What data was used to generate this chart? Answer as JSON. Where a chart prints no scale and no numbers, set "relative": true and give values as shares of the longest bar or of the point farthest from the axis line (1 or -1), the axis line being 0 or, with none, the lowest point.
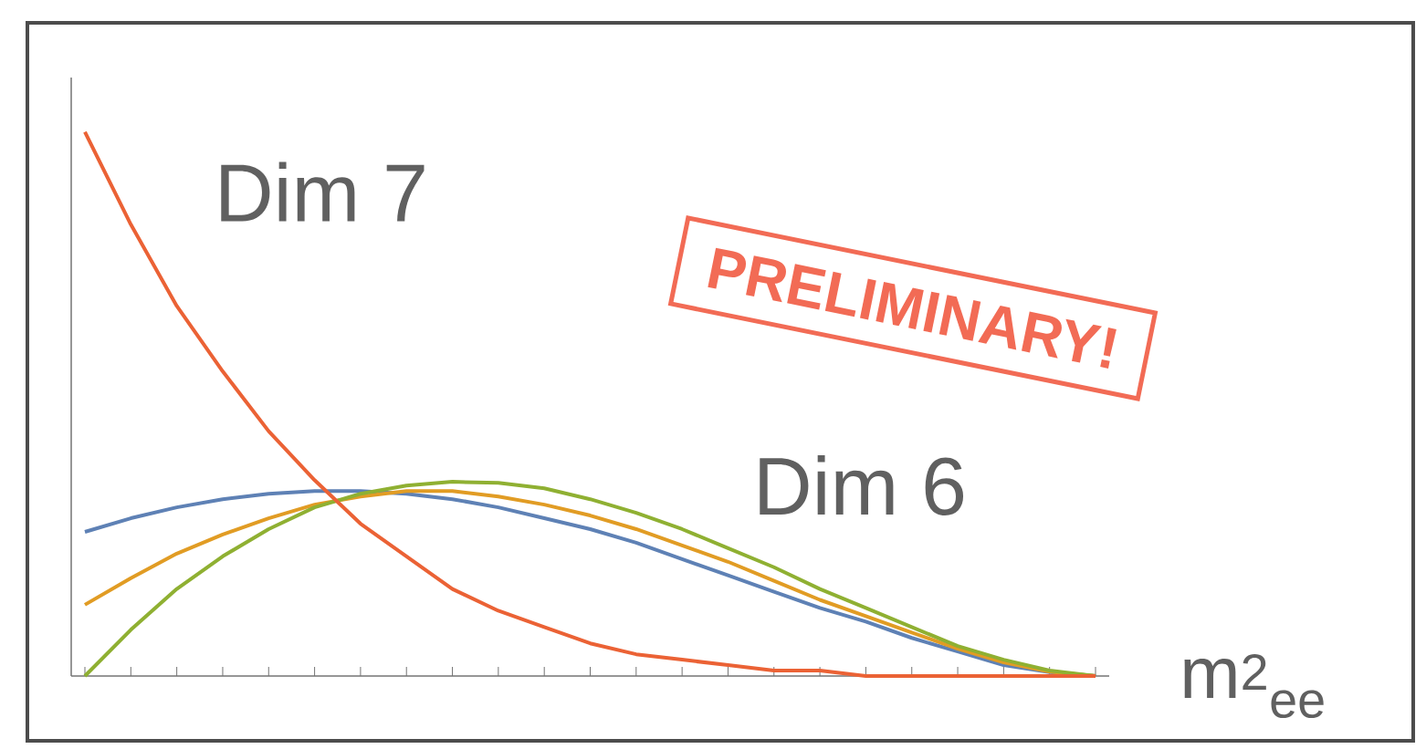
{
  "chart_data": {
    "type": "line",
    "relative": true,
    "xlabel": "m$^{2}$$_{ee}$",
    "annotations": [
      "Dim 7",
      "Dim 6",
      "PRELIMINARY!"
    ],
    "categories": [
      null,
      null,
      null,
      null,
      null,
      null,
      null,
      null,
      null,
      null,
      null,
      null,
      null,
      null,
      null,
      null,
      null,
      null,
      null,
      null,
      null,
      null,
      null
    ],
    "series": [
      {
        "color": "#5e81b5",
        "values": [
          0.265,
          0.29,
          0.31,
          0.325,
          0.335,
          0.34,
          0.34,
          0.335,
          0.325,
          0.31,
          0.29,
          0.27,
          0.245,
          0.215,
          0.185,
          0.155,
          0.125,
          0.1,
          0.07,
          0.045,
          0.02,
          0.007,
          0
        ]
      },
      {
        "color": "#e19c24",
        "values": [
          0.131,
          0.18,
          0.225,
          0.26,
          0.29,
          0.315,
          0.33,
          0.34,
          0.34,
          0.33,
          0.315,
          0.295,
          0.27,
          0.24,
          0.21,
          0.175,
          0.14,
          0.11,
          0.08,
          0.05,
          0.025,
          0.008,
          0
        ]
      },
      {
        "color": "#8fb032",
        "values": [
          0,
          0.085,
          0.16,
          0.22,
          0.27,
          0.31,
          0.335,
          0.35,
          0.357,
          0.355,
          0.345,
          0.325,
          0.3,
          0.27,
          0.235,
          0.2,
          0.16,
          0.125,
          0.09,
          0.055,
          0.03,
          0.01,
          0
        ]
      },
      {
        "color": "#eb6235",
        "values": [
          1,
          0.83,
          0.68,
          0.56,
          0.45,
          0.36,
          0.28,
          0.22,
          0.16,
          0.12,
          0.09,
          0.06,
          0.04,
          0.03,
          0.02,
          0.01,
          0.01,
          0,
          0,
          0,
          0,
          0,
          0
        ]
      }
    ]
  }
}
